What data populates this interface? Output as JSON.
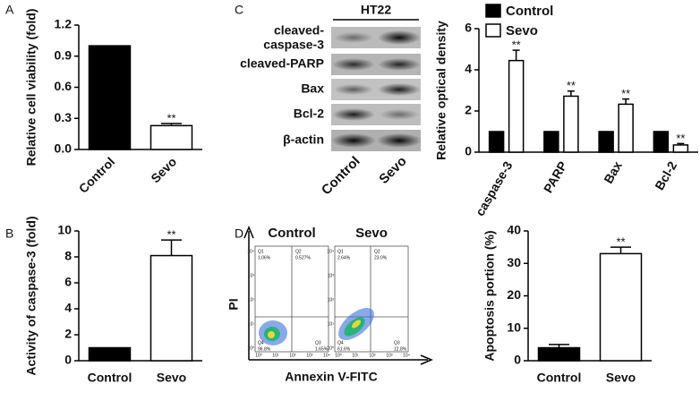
{
  "panel_labels": [
    "A",
    "B",
    "C",
    "D"
  ],
  "chart_data": [
    {
      "type": "bar",
      "y_label": "Relative cell viability (fold)",
      "categories": [
        "Control",
        "Sevo"
      ],
      "values": [
        1.0,
        0.23
      ],
      "errors": [
        null,
        0.02
      ],
      "colors": [
        "#000000",
        "#ffffff"
      ],
      "significance": [
        null,
        "**"
      ],
      "ylim": [
        0,
        1.2
      ],
      "yticks": [
        {
          "value": 0,
          "label": "0.0"
        },
        0.3,
        0.6,
        0.9,
        1.2
      ]
    },
    {
      "type": "bar",
      "y_label": "Activity of caspase-3 (fold)",
      "categories": [
        "Control",
        "Sevo"
      ],
      "values": [
        1,
        8.1
      ],
      "errors": [
        null,
        1.2
      ],
      "colors": [
        "#000000",
        "#ffffff"
      ],
      "significance": [
        null,
        "**"
      ],
      "ylim": [
        0,
        10
      ],
      "yticks": [
        0,
        2,
        4,
        6,
        8,
        10
      ]
    },
    {
      "type": "grouped_bar",
      "y_label": "Relative optical density",
      "categories": [
        "caspase-3",
        "PARP",
        "Bax",
        "Bcl-2"
      ],
      "series": [
        {
          "name": "Control",
          "color": "#000000",
          "values": [
            1,
            1,
            1,
            1
          ],
          "errors": [
            null,
            null,
            null,
            null
          ],
          "significance": [
            null,
            null,
            null,
            null
          ]
        },
        {
          "name": "Sevo",
          "color": "#ffffff",
          "values": [
            4.45,
            2.72,
            2.33,
            0.35
          ],
          "errors": [
            0.5,
            0.25,
            0.25,
            0.07
          ],
          "significance": [
            "**",
            "**",
            "**",
            "**"
          ]
        }
      ],
      "ylim": [
        0,
        6
      ],
      "yticks": [
        0,
        2,
        4,
        6
      ],
      "legend": "top-left"
    },
    {
      "type": "bar",
      "y_label": "Apoptosis portion (%)",
      "categories": [
        "Control",
        "Sevo"
      ],
      "values": [
        4,
        33
      ],
      "errors": [
        1,
        2
      ],
      "colors": [
        "#000000",
        "#ffffff"
      ],
      "significance": [
        null,
        "**"
      ],
      "ylim": [
        0,
        40
      ],
      "yticks": [
        0,
        10,
        20,
        30,
        40
      ]
    }
  ],
  "blot": {
    "title": "HT22",
    "row_labels": [
      [
        "cleaved-",
        "caspase-3"
      ],
      [
        "cleaved-PARP"
      ],
      [
        "Bax"
      ],
      [
        "Bcl-2"
      ],
      [
        "β-actin"
      ]
    ],
    "lanes": [
      "Control",
      "Sevo"
    ]
  },
  "flow": {
    "x_label": "Annexin V-FITC",
    "y_label": "PI",
    "ticks": [
      "10⁰",
      "10¹",
      "10²",
      "10³",
      "10⁴"
    ],
    "plots": [
      {
        "title": "Control",
        "quadrants": [
          {
            "name": "Q1",
            "value": "1.06%"
          },
          {
            "name": "Q2",
            "value": "0.527%"
          },
          {
            "name": "Q3",
            "value": "1.65%"
          },
          {
            "name": "Q4",
            "value": "96.8%"
          }
        ]
      },
      {
        "title": "Sevo",
        "quadrants": [
          {
            "name": "Q1",
            "value": "2.64%"
          },
          {
            "name": "Q2",
            "value": "23.0%"
          },
          {
            "name": "Q3",
            "value": "12.8%"
          },
          {
            "name": "Q4",
            "value": "61.6%"
          }
        ]
      }
    ]
  }
}
